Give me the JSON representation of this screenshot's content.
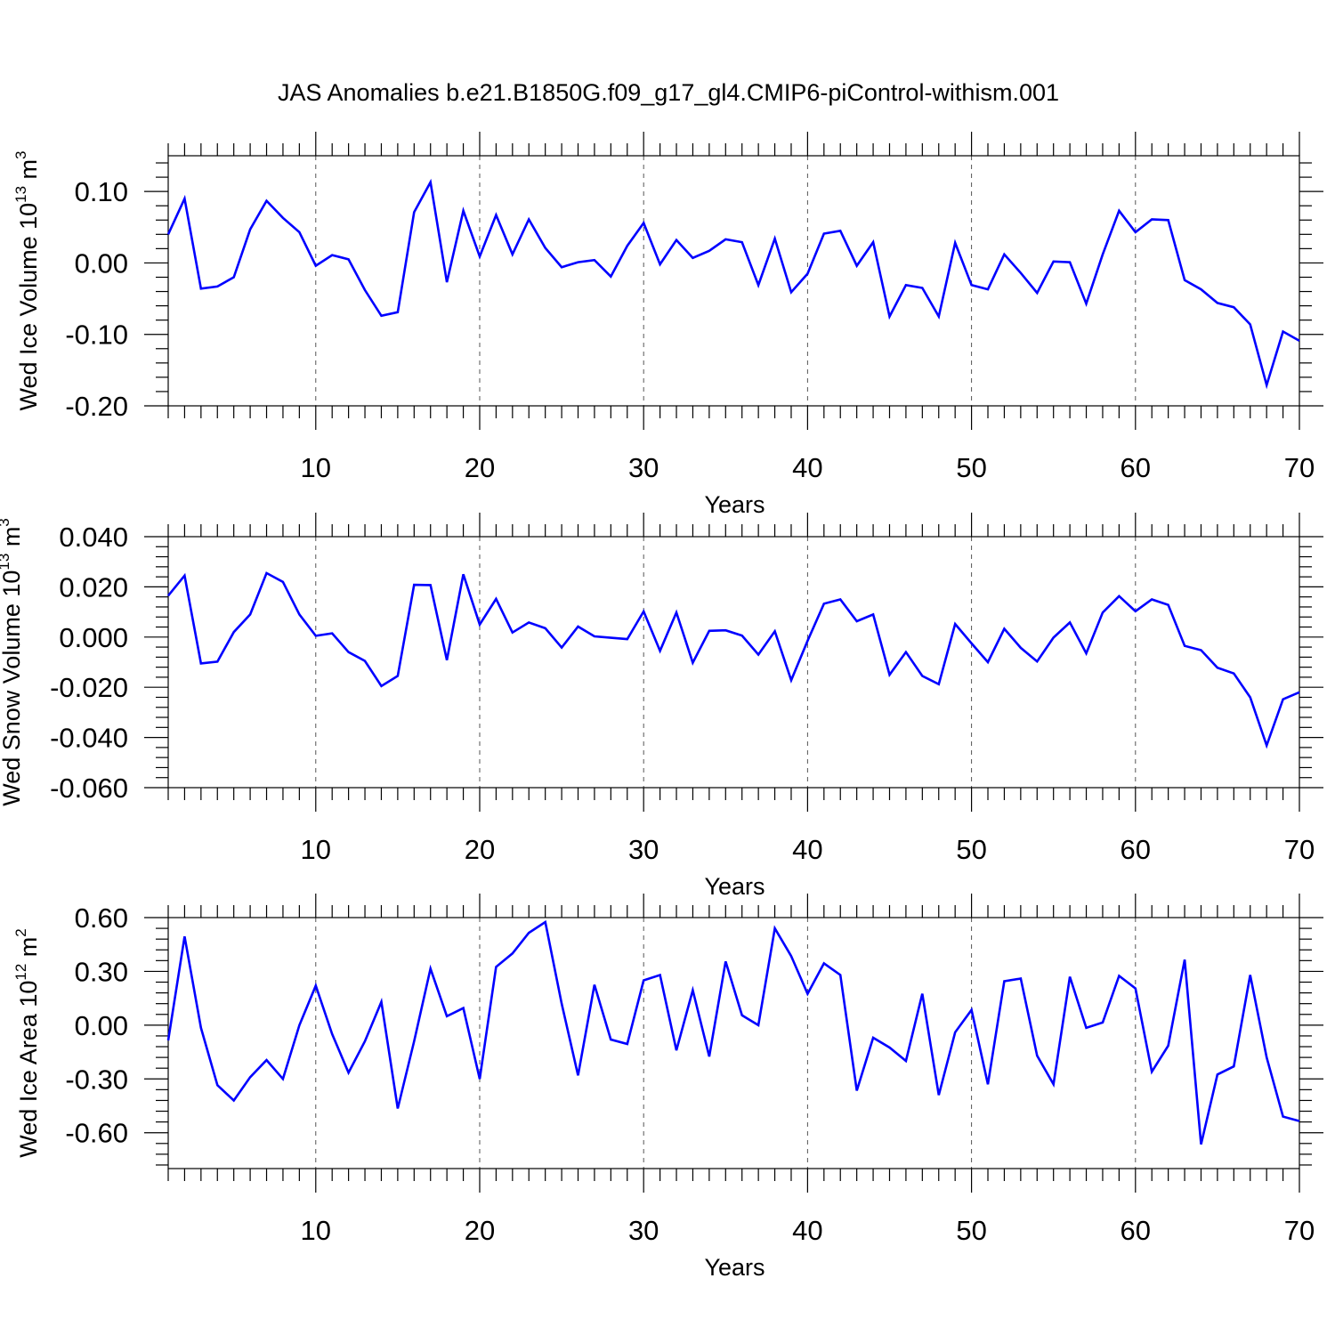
{
  "title": "JAS Anomalies b.e21.B1850G.f09_g17_gl4.CMIP6-piControl-withism.001",
  "colors": {
    "line": "#0000ff",
    "axes": "#000000",
    "grid": "#555555"
  },
  "chart_data": [
    {
      "type": "line",
      "ylabel": "Wed Ice Volume 10",
      "ylabel_exp": "13",
      "ylabel_unit": " m",
      "ylabel_unit_exp": "3",
      "xlabel": "Years",
      "xlim": [
        1,
        70
      ],
      "ylim": [
        -0.2,
        0.15
      ],
      "xticks": [
        "10",
        "20",
        "30",
        "40",
        "50",
        "60",
        "70"
      ],
      "yticks": [
        "0.10",
        "0.00",
        "-0.10",
        "-0.20"
      ],
      "ytick_values": [
        0.1,
        0.0,
        -0.1,
        -0.2
      ],
      "grid": "vertical dashed at major x ticks",
      "values": [
        0.04,
        0.09,
        -0.036,
        -0.033,
        -0.02,
        0.047,
        0.087,
        0.063,
        0.043,
        -0.004,
        0.011,
        0.005,
        -0.038,
        -0.074,
        -0.069,
        0.071,
        0.113,
        -0.027,
        0.073,
        0.009,
        0.067,
        0.012,
        0.061,
        0.021,
        -0.006,
        0.001,
        0.004,
        -0.019,
        0.024,
        0.056,
        -0.002,
        0.032,
        0.007,
        0.017,
        0.033,
        0.029,
        -0.031,
        0.034,
        -0.041,
        -0.015,
        0.041,
        0.045,
        -0.004,
        0.029,
        -0.075,
        -0.031,
        -0.035,
        -0.075,
        0.028,
        -0.031,
        -0.037,
        0.012,
        -0.014,
        -0.042,
        0.002,
        0.001,
        -0.057,
        0.012,
        0.073,
        0.043,
        0.061,
        0.06,
        -0.024,
        -0.037,
        -0.056,
        -0.062,
        -0.086,
        -0.171,
        -0.096,
        -0.109
      ]
    },
    {
      "type": "line",
      "ylabel": "Wed Snow Volume 10",
      "ylabel_exp": "13",
      "ylabel_unit": " m",
      "ylabel_unit_exp": "3",
      "xlabel": "Years",
      "xlim": [
        1,
        70
      ],
      "ylim": [
        -0.06,
        0.04
      ],
      "xticks": [
        "10",
        "20",
        "30",
        "40",
        "50",
        "60",
        "70"
      ],
      "yticks": [
        "0.040",
        "0.020",
        "0.000",
        "-0.020",
        "-0.040",
        "-0.060"
      ],
      "ytick_values": [
        0.04,
        0.02,
        0.0,
        -0.02,
        -0.04,
        -0.06
      ],
      "grid": "vertical dashed at major x ticks",
      "values": [
        0.0165,
        0.0245,
        -0.0105,
        -0.0098,
        0.002,
        0.009,
        0.0255,
        0.022,
        0.009,
        0.0005,
        0.0015,
        -0.006,
        -0.0095,
        -0.0195,
        -0.0155,
        0.0208,
        0.0207,
        -0.0092,
        0.025,
        0.005,
        0.0152,
        0.0018,
        0.0058,
        0.0035,
        -0.0042,
        0.0042,
        0.0003,
        -0.0003,
        -0.0008,
        0.0102,
        -0.0055,
        0.0098,
        -0.0102,
        0.0025,
        0.0027,
        0.0006,
        -0.007,
        0.0023,
        -0.0172,
        -0.0015,
        0.0133,
        0.015,
        0.0063,
        0.009,
        -0.015,
        -0.006,
        -0.0155,
        -0.0188,
        0.0052,
        -0.0025,
        -0.01,
        0.0033,
        -0.0043,
        -0.0097,
        -0.0002,
        0.0058,
        -0.0065,
        0.0098,
        0.0163,
        0.0103,
        0.015,
        0.0128,
        -0.0035,
        -0.0052,
        -0.0122,
        -0.0145,
        -0.024,
        -0.0432,
        -0.0248,
        -0.022
      ]
    },
    {
      "type": "line",
      "ylabel": "Wed Ice Area 10",
      "ylabel_exp": "12",
      "ylabel_unit": " m",
      "ylabel_unit_exp": "2",
      "xlabel": "Years",
      "xlim": [
        1,
        70
      ],
      "ylim": [
        -0.8,
        0.6
      ],
      "xticks": [
        "10",
        "20",
        "30",
        "40",
        "50",
        "60",
        "70"
      ],
      "yticks": [
        "0.60",
        "0.30",
        "0.00",
        "-0.30",
        "-0.60"
      ],
      "ytick_values": [
        0.6,
        0.3,
        0.0,
        -0.3,
        -0.6
      ],
      "grid": "vertical dashed at major x ticks",
      "values": [
        -0.085,
        0.495,
        -0.015,
        -0.335,
        -0.42,
        -0.29,
        -0.195,
        -0.3,
        0.0,
        0.22,
        -0.05,
        -0.265,
        -0.09,
        0.13,
        -0.465,
        -0.09,
        0.315,
        0.05,
        0.095,
        -0.3,
        0.325,
        0.4,
        0.515,
        0.575,
        0.12,
        -0.28,
        0.225,
        -0.08,
        -0.105,
        0.25,
        0.28,
        -0.14,
        0.195,
        -0.175,
        0.355,
        0.055,
        0.0,
        0.54,
        0.385,
        0.175,
        0.345,
        0.28,
        -0.365,
        -0.07,
        -0.125,
        -0.2,
        0.175,
        -0.39,
        -0.04,
        0.085,
        -0.33,
        0.245,
        0.26,
        -0.17,
        -0.33,
        0.27,
        -0.015,
        0.015,
        0.275,
        0.205,
        -0.26,
        -0.115,
        0.365,
        -0.665,
        -0.275,
        -0.23,
        0.28,
        -0.18,
        -0.51,
        -0.535
      ]
    }
  ]
}
